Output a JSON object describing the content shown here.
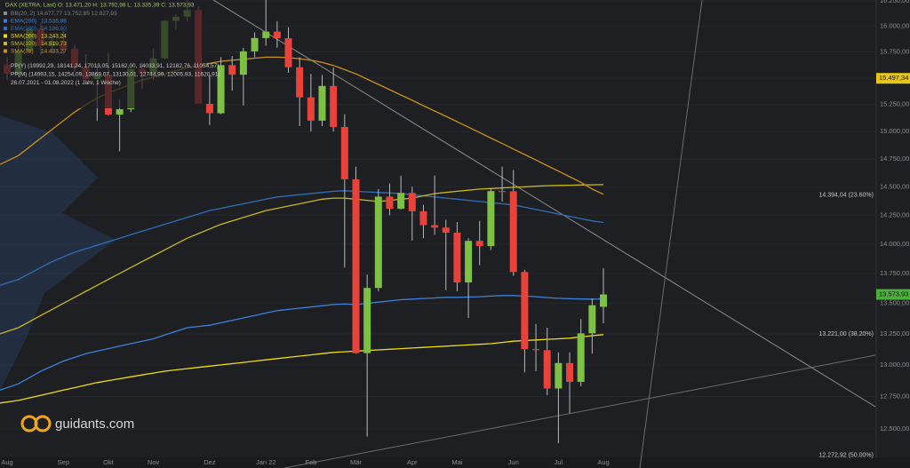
{
  "chart_data": {
    "type": "candlestick",
    "log_scale": true,
    "categories": [
      "Aug",
      null,
      null,
      null,
      null,
      "Sep",
      null,
      null,
      null,
      "Okt",
      null,
      null,
      null,
      "Nov",
      null,
      null,
      null,
      null,
      "Dez",
      null,
      null,
      null,
      null,
      "Jan 22",
      null,
      null,
      null,
      "Feb",
      null,
      null,
      null,
      "Mär",
      null,
      null,
      null,
      null,
      "Apr",
      null,
      null,
      null,
      "Mai",
      null,
      null,
      null,
      null,
      "Jun",
      null,
      null,
      null,
      "Jul",
      null,
      null,
      null,
      "Aug"
    ],
    "open": [
      15630,
      15544,
      15761,
      15977,
      15808,
      15852,
      15781,
      15609,
      15490,
      15531,
      15156,
      15206,
      15587,
      15543,
      15689,
      16054,
      16094,
      16160,
      15257,
      15169,
      15623,
      15532,
      15756,
      15885,
      15948,
      15883,
      15603,
      15318,
      15100,
      15425,
      15042,
      14567,
      13094,
      13628,
      14413,
      14306,
      14446,
      14284,
      14163,
      14142,
      14098,
      13674,
      14027,
      13982,
      14462,
      14460,
      13762,
      13126,
      13118,
      12813,
      13015,
      12865,
      13254,
      13471.2
    ],
    "high": [
      15700,
      15810,
      15980,
      16030,
      15900,
      15960,
      15820,
      15730,
      15630,
      15740,
      15300,
      15600,
      15650,
      15780,
      16060,
      16120,
      16290,
      16200,
      15530,
      15700,
      15710,
      15790,
      15940,
      16290,
      16050,
      15990,
      15700,
      15540,
      15530,
      15600,
      15160,
      14680,
      13740,
      14480,
      14530,
      14600,
      14500,
      14340,
      14600,
      14210,
      14190,
      14050,
      14200,
      14480,
      14680,
      14650,
      13780,
      13330,
      13300,
      13100,
      13100,
      13370,
      13540,
      13792.98
    ],
    "low": [
      15480,
      15500,
      15740,
      15720,
      15740,
      15730,
      15560,
      15450,
      15100,
      15150,
      14820,
      15180,
      15400,
      15480,
      15680,
      15970,
      16050,
      15260,
      15060,
      15160,
      15380,
      15240,
      15700,
      15810,
      15790,
      15550,
      15050,
      15000,
      15050,
      15000,
      13800,
      13090,
      12440,
      13600,
      14250,
      14300,
      14030,
      14050,
      14080,
      13610,
      13600,
      13380,
      13820,
      13950,
      14370,
      13730,
      12940,
      12950,
      12760,
      12390,
      12620,
      12830,
      13090,
      13335.39
    ],
    "close": [
      15544,
      15761,
      15977,
      15808,
      15852,
      15781,
      15609,
      15490,
      15531,
      15156,
      15206,
      15587,
      15543,
      15689,
      16054,
      16094,
      16160,
      15257,
      15169,
      15623,
      15532,
      15756,
      15885,
      15948,
      15883,
      15603,
      15318,
      15100,
      15425,
      15042,
      14567,
      13094,
      13628,
      14413,
      14306,
      14446,
      14284,
      14163,
      14142,
      14098,
      13674,
      14027,
      13982,
      14462,
      14460,
      13762,
      13126,
      13118,
      12813,
      13015,
      12865,
      13254,
      13484,
      13573.93
    ],
    "up_color": "#7cc143",
    "down_color": "#e8423b",
    "series": [
      {
        "name": "EMA(200)",
        "legend_value": "13.536,88",
        "color": "#3d82d8",
        "values": [
          12800,
          12850,
          12900,
          12950,
          12990,
          13030,
          13060,
          13090,
          13110,
          13130,
          13150,
          13170,
          13190,
          13210,
          13240,
          13270,
          13300,
          13310,
          13320,
          13340,
          13360,
          13380,
          13400,
          13420,
          13440,
          13450,
          13460,
          13470,
          13480,
          13490,
          13495,
          13490,
          13500,
          13510,
          13520,
          13530,
          13535,
          13540,
          13545,
          13550,
          13550,
          13552,
          13555,
          13560,
          13565,
          13565,
          13560,
          13555,
          13548,
          13542,
          13538,
          13536,
          13535,
          13536.88
        ]
      },
      {
        "name": "EMA(100)",
        "legend_value": "14.186,60",
        "color": "#2f6fb8",
        "values": [
          13650,
          13700,
          13750,
          13800,
          13850,
          13890,
          13930,
          13960,
          13990,
          14020,
          14050,
          14080,
          14110,
          14140,
          14170,
          14200,
          14230,
          14260,
          14290,
          14310,
          14330,
          14350,
          14370,
          14390,
          14410,
          14420,
          14430,
          14440,
          14450,
          14460,
          14465,
          14460,
          14455,
          14450,
          14445,
          14440,
          14430,
          14420,
          14410,
          14400,
          14390,
          14380,
          14370,
          14360,
          14350,
          14340,
          14320,
          14300,
          14280,
          14260,
          14240,
          14220,
          14200,
          14186.6
        ]
      },
      {
        "name": "SMA(200)",
        "legend_value": "13.243,24",
        "color": "#f0dc14",
        "values": [
          12700,
          12720,
          12740,
          12760,
          12780,
          12800,
          12820,
          12840,
          12860,
          12875,
          12890,
          12905,
          12920,
          12935,
          12950,
          12960,
          12970,
          12980,
          12990,
          13000,
          13010,
          13020,
          13030,
          13040,
          13050,
          13060,
          13070,
          13080,
          13090,
          13100,
          13105,
          13110,
          13115,
          13120,
          13125,
          13130,
          13135,
          13140,
          13145,
          13150,
          13155,
          13160,
          13165,
          13170,
          13180,
          13190,
          13195,
          13200,
          13205,
          13210,
          13215,
          13225,
          13235,
          13243.24
        ]
      },
      {
        "name": "SMA(100)",
        "legend_value": "14.519,73",
        "color": "#c9b820",
        "values": [
          13250,
          13300,
          13350,
          13400,
          13450,
          13500,
          13550,
          13600,
          13650,
          13700,
          13750,
          13800,
          13850,
          13900,
          13950,
          14000,
          14050,
          14090,
          14130,
          14170,
          14200,
          14230,
          14260,
          14290,
          14310,
          14330,
          14350,
          14370,
          14390,
          14400,
          14400,
          14390,
          14380,
          14370,
          14380,
          14390,
          14400,
          14420,
          14440,
          14450,
          14460,
          14470,
          14480,
          14485,
          14490,
          14495,
          14500,
          14505,
          14510,
          14512,
          14514,
          14516,
          14518,
          14519.73
        ]
      },
      {
        "name": "SMA(38)",
        "legend_value": "14.433,27",
        "color": "#c8901c",
        "values": [
          14700,
          14780,
          14860,
          14940,
          15020,
          15100,
          15180,
          15250,
          15310,
          15360,
          15400,
          15440,
          15480,
          15510,
          15540,
          15570,
          15600,
          15620,
          15640,
          15660,
          15670,
          15680,
          15690,
          15700,
          15700,
          15695,
          15685,
          15670,
          15650,
          15620,
          15580,
          15540,
          15490,
          15440,
          15390,
          15340,
          15290,
          15240,
          15190,
          15140,
          15090,
          15040,
          14990,
          14940,
          14890,
          14840,
          14790,
          14740,
          14690,
          14640,
          14590,
          14540,
          14480,
          14433.27
        ]
      }
    ],
    "ylim": [
      12270,
      16260
    ],
    "yticks": [
      {
        "value": 12500,
        "label": "12.500,00"
      },
      {
        "value": 12750,
        "label": "12.750,00"
      },
      {
        "value": 13000,
        "label": "13.000,00"
      },
      {
        "value": 13250,
        "label": "13.250,00"
      },
      {
        "value": 13500,
        "label": "13.500,00"
      },
      {
        "value": 13750,
        "label": "13.750,00"
      },
      {
        "value": 14000,
        "label": "14.000,00"
      },
      {
        "value": 14250,
        "label": "14.250,00"
      },
      {
        "value": 14500,
        "label": "14.500,00"
      },
      {
        "value": 14750,
        "label": "14.750,00"
      },
      {
        "value": 15000,
        "label": "15.000,00"
      },
      {
        "value": 15250,
        "label": "15.250,00"
      },
      {
        "value": 15500,
        "label": "15.500,00"
      },
      {
        "value": 15750,
        "label": "15.750,00"
      },
      {
        "value": 16000,
        "label": "16.000,00"
      },
      {
        "value": 16250,
        "label": "16.250,00"
      }
    ],
    "grid": true,
    "price_tags": [
      {
        "value": 15497.34,
        "label": "15.497,34",
        "color": "#e6c619"
      },
      {
        "value": 13573.93,
        "label": "13.573,93",
        "color": "#4caf3c"
      }
    ],
    "fib_levels": [
      {
        "value": 14394.04,
        "label": "14.394,04 (23.60%)"
      },
      {
        "value": 13221.0,
        "label": "13.221,00 (38.20%)"
      },
      {
        "value": 12272.92,
        "label": "12.272,92 (50.00%)"
      }
    ],
    "legend_header": "DAX (XETRA, Last)  O: 13.471,20  H: 13.792,98  L: 13.335,39  C: 13.573,93",
    "legend_bb": "BB(20, 2)  14.677,77  13.752,85  12.827,93",
    "legend_pp": [
      "PP(Y)  (19992,29, 18141,24, 17013,05, 15162,00, 14033,91, 12182,76, 11054,57)",
      "PP(M)  (14993,15, 14254,09, 13869,07, 13130,01, 12744,99, 12005,93, 11620,91)"
    ],
    "period": "26.07.2021 - 01.08.2022  (1 Jahr, 1 Woche)",
    "logo": "guidants.com"
  }
}
